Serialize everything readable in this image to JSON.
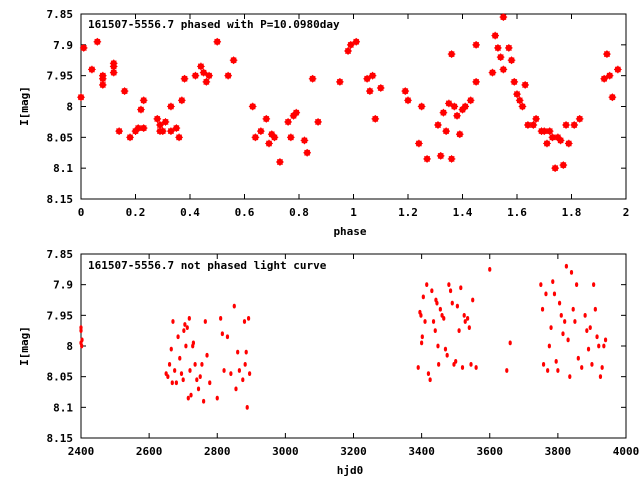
{
  "chart_data": [
    {
      "type": "scatter",
      "title": "161507-5556.7 phased with P=10.0980day",
      "xlabel": "phase",
      "ylabel": "I[mag]",
      "xlim": [
        0,
        2
      ],
      "ylim": [
        7.85,
        8.15
      ],
      "y_inverted": true,
      "grid": false,
      "marker_color": "#ff0000",
      "x_ticks": [
        0,
        0.2,
        0.4,
        0.6,
        0.8,
        1,
        1.2,
        1.4,
        1.6,
        1.8,
        2
      ],
      "x_tick_labels": [
        "0",
        "0.2",
        "0.4",
        "0.6",
        "0.8",
        "1",
        "1.2",
        "1.4",
        "1.6",
        "1.8",
        "2"
      ],
      "y_ticks": [
        7.85,
        7.9,
        7.95,
        8.0,
        8.05,
        8.1,
        8.15
      ],
      "y_tick_labels": [
        "7.85",
        "7.9",
        "7.95",
        "8",
        "8.05",
        "8.1",
        "8.15"
      ],
      "points": [
        [
          0.0,
          7.985
        ],
        [
          0.01,
          7.905
        ],
        [
          0.04,
          7.94
        ],
        [
          0.06,
          7.895
        ],
        [
          0.08,
          7.965
        ],
        [
          0.08,
          7.95
        ],
        [
          0.08,
          7.955
        ],
        [
          0.12,
          7.93
        ],
        [
          0.12,
          7.935
        ],
        [
          0.12,
          7.945
        ],
        [
          0.14,
          8.04
        ],
        [
          0.16,
          7.975
        ],
        [
          0.18,
          8.05
        ],
        [
          0.2,
          8.04
        ],
        [
          0.21,
          8.035
        ],
        [
          0.22,
          8.005
        ],
        [
          0.23,
          7.99
        ],
        [
          0.23,
          8.035
        ],
        [
          0.28,
          8.02
        ],
        [
          0.29,
          8.03
        ],
        [
          0.29,
          8.04
        ],
        [
          0.3,
          8.04
        ],
        [
          0.31,
          8.025
        ],
        [
          0.33,
          8.04
        ],
        [
          0.33,
          8.0
        ],
        [
          0.35,
          8.035
        ],
        [
          0.36,
          8.05
        ],
        [
          0.37,
          7.99
        ],
        [
          0.38,
          7.955
        ],
        [
          0.42,
          7.95
        ],
        [
          0.44,
          7.935
        ],
        [
          0.45,
          7.945
        ],
        [
          0.46,
          7.96
        ],
        [
          0.47,
          7.95
        ],
        [
          0.5,
          7.895
        ],
        [
          0.54,
          7.95
        ],
        [
          0.56,
          7.925
        ],
        [
          0.63,
          8.0
        ],
        [
          0.64,
          8.05
        ],
        [
          0.66,
          8.04
        ],
        [
          0.68,
          8.02
        ],
        [
          0.69,
          8.06
        ],
        [
          0.7,
          8.045
        ],
        [
          0.71,
          8.05
        ],
        [
          0.73,
          8.09
        ],
        [
          0.76,
          8.025
        ],
        [
          0.77,
          8.05
        ],
        [
          0.78,
          8.015
        ],
        [
          0.79,
          8.01
        ],
        [
          0.82,
          8.055
        ],
        [
          0.83,
          8.075
        ],
        [
          0.85,
          7.955
        ],
        [
          0.87,
          8.025
        ],
        [
          0.95,
          7.96
        ],
        [
          0.98,
          7.91
        ],
        [
          0.99,
          7.9
        ],
        [
          1.01,
          7.895
        ],
        [
          1.05,
          7.955
        ],
        [
          1.06,
          7.975
        ],
        [
          1.07,
          7.95
        ],
        [
          1.08,
          8.02
        ],
        [
          1.1,
          7.97
        ],
        [
          1.19,
          7.975
        ],
        [
          1.2,
          7.99
        ],
        [
          1.24,
          8.06
        ],
        [
          1.25,
          8.0
        ],
        [
          1.27,
          8.085
        ],
        [
          1.31,
          8.03
        ],
        [
          1.32,
          8.08
        ],
        [
          1.33,
          8.01
        ],
        [
          1.34,
          8.04
        ],
        [
          1.35,
          7.995
        ],
        [
          1.36,
          8.085
        ],
        [
          1.37,
          8.0
        ],
        [
          1.38,
          8.015
        ],
        [
          1.39,
          8.045
        ],
        [
          1.4,
          8.005
        ],
        [
          1.41,
          8.0
        ],
        [
          1.43,
          7.99
        ],
        [
          1.45,
          7.96
        ],
        [
          1.45,
          7.9
        ],
        [
          1.51,
          7.945
        ],
        [
          1.52,
          7.885
        ],
        [
          1.53,
          7.905
        ],
        [
          1.54,
          7.92
        ],
        [
          1.55,
          7.94
        ],
        [
          1.57,
          7.905
        ],
        [
          1.58,
          7.925
        ],
        [
          1.59,
          7.96
        ],
        [
          1.6,
          7.98
        ],
        [
          1.61,
          7.99
        ],
        [
          1.62,
          8.0
        ],
        [
          1.63,
          7.965
        ],
        [
          1.64,
          8.03
        ],
        [
          1.66,
          8.03
        ],
        [
          1.67,
          8.02
        ],
        [
          1.69,
          8.04
        ],
        [
          1.7,
          8.04
        ],
        [
          1.71,
          8.06
        ],
        [
          1.72,
          8.04
        ],
        [
          1.73,
          8.05
        ],
        [
          1.74,
          8.1
        ],
        [
          1.75,
          8.05
        ],
        [
          1.76,
          8.055
        ],
        [
          1.77,
          8.095
        ],
        [
          1.78,
          8.03
        ],
        [
          1.79,
          8.06
        ],
        [
          1.81,
          8.03
        ],
        [
          1.83,
          8.02
        ],
        [
          1.92,
          7.955
        ],
        [
          1.93,
          7.915
        ],
        [
          1.94,
          7.95
        ],
        [
          1.95,
          7.985
        ],
        [
          1.97,
          7.94
        ],
        [
          1.55,
          7.855
        ],
        [
          1.36,
          7.915
        ]
      ]
    },
    {
      "type": "scatter",
      "title": "161507-5556.7 not phased light curve",
      "xlabel": "hjd0",
      "ylabel": "I[mag]",
      "xlim": [
        2400,
        4000
      ],
      "ylim": [
        7.85,
        8.15
      ],
      "y_inverted": true,
      "grid": false,
      "marker_color": "#ff0000",
      "x_ticks": [
        2400,
        2600,
        2800,
        3000,
        3200,
        3400,
        3600,
        3800,
        4000
      ],
      "x_tick_labels": [
        "2400",
        "2600",
        "2800",
        "3000",
        "3200",
        "3400",
        "3600",
        "3800",
        "4000"
      ],
      "y_ticks": [
        7.85,
        7.9,
        7.95,
        8.0,
        8.05,
        8.1,
        8.15
      ],
      "y_tick_labels": [
        "7.85",
        "7.9",
        "7.95",
        "8",
        "8.05",
        "8.1",
        "8.15"
      ],
      "points": [
        [
          2400,
          7.97
        ],
        [
          2400,
          7.975
        ],
        [
          2400,
          7.995
        ],
        [
          2402,
          8.0
        ],
        [
          2403,
          7.99
        ],
        [
          2650,
          8.045
        ],
        [
          2655,
          8.05
        ],
        [
          2660,
          8.03
        ],
        [
          2665,
          8.005
        ],
        [
          2668,
          8.06
        ],
        [
          2670,
          7.96
        ],
        [
          2675,
          8.04
        ],
        [
          2680,
          8.06
        ],
        [
          2685,
          7.985
        ],
        [
          2690,
          8.02
        ],
        [
          2695,
          8.045
        ],
        [
          2700,
          8.055
        ],
        [
          2702,
          7.975
        ],
        [
          2705,
          7.965
        ],
        [
          2708,
          8.0
        ],
        [
          2712,
          7.97
        ],
        [
          2715,
          8.085
        ],
        [
          2718,
          7.955
        ],
        [
          2720,
          8.04
        ],
        [
          2723,
          8.08
        ],
        [
          2728,
          8.0
        ],
        [
          2730,
          7.995
        ],
        [
          2735,
          8.03
        ],
        [
          2740,
          8.055
        ],
        [
          2745,
          8.07
        ],
        [
          2750,
          8.05
        ],
        [
          2755,
          8.03
        ],
        [
          2760,
          8.09
        ],
        [
          2765,
          7.96
        ],
        [
          2770,
          8.015
        ],
        [
          2778,
          8.06
        ],
        [
          2800,
          8.085
        ],
        [
          2810,
          7.955
        ],
        [
          2815,
          7.98
        ],
        [
          2820,
          8.04
        ],
        [
          2830,
          7.985
        ],
        [
          2840,
          8.045
        ],
        [
          2850,
          7.935
        ],
        [
          2855,
          8.07
        ],
        [
          2860,
          8.01
        ],
        [
          2865,
          8.04
        ],
        [
          2875,
          8.055
        ],
        [
          2880,
          7.96
        ],
        [
          2882,
          8.03
        ],
        [
          2885,
          8.01
        ],
        [
          2888,
          8.1
        ],
        [
          2892,
          7.955
        ],
        [
          2895,
          8.045
        ],
        [
          3390,
          8.035
        ],
        [
          3395,
          7.945
        ],
        [
          3398,
          7.95
        ],
        [
          3400,
          7.995
        ],
        [
          3402,
          7.985
        ],
        [
          3405,
          7.92
        ],
        [
          3410,
          7.96
        ],
        [
          3415,
          7.9
        ],
        [
          3420,
          8.045
        ],
        [
          3425,
          8.055
        ],
        [
          3430,
          7.91
        ],
        [
          3435,
          7.96
        ],
        [
          3440,
          7.975
        ],
        [
          3442,
          7.925
        ],
        [
          3445,
          7.93
        ],
        [
          3448,
          8.0
        ],
        [
          3450,
          8.03
        ],
        [
          3455,
          7.94
        ],
        [
          3460,
          7.95
        ],
        [
          3465,
          7.955
        ],
        [
          3470,
          8.005
        ],
        [
          3475,
          8.015
        ],
        [
          3480,
          7.9
        ],
        [
          3485,
          7.91
        ],
        [
          3490,
          7.93
        ],
        [
          3495,
          8.03
        ],
        [
          3500,
          8.025
        ],
        [
          3505,
          7.935
        ],
        [
          3510,
          7.975
        ],
        [
          3515,
          7.905
        ],
        [
          3520,
          8.035
        ],
        [
          3525,
          7.95
        ],
        [
          3528,
          7.96
        ],
        [
          3535,
          7.955
        ],
        [
          3540,
          7.97
        ],
        [
          3545,
          8.03
        ],
        [
          3550,
          7.925
        ],
        [
          3560,
          8.035
        ],
        [
          3600,
          7.875
        ],
        [
          3650,
          8.04
        ],
        [
          3660,
          7.995
        ],
        [
          3750,
          7.9
        ],
        [
          3755,
          7.94
        ],
        [
          3758,
          8.03
        ],
        [
          3765,
          7.915
        ],
        [
          3770,
          8.04
        ],
        [
          3775,
          8.0
        ],
        [
          3780,
          7.97
        ],
        [
          3785,
          7.895
        ],
        [
          3790,
          7.915
        ],
        [
          3795,
          8.025
        ],
        [
          3800,
          8.04
        ],
        [
          3805,
          7.93
        ],
        [
          3810,
          7.95
        ],
        [
          3815,
          7.98
        ],
        [
          3820,
          7.96
        ],
        [
          3825,
          7.87
        ],
        [
          3830,
          7.99
        ],
        [
          3835,
          8.05
        ],
        [
          3840,
          7.88
        ],
        [
          3845,
          7.94
        ],
        [
          3850,
          7.96
        ],
        [
          3855,
          7.9
        ],
        [
          3860,
          8.02
        ],
        [
          3870,
          8.035
        ],
        [
          3880,
          7.95
        ],
        [
          3885,
          7.975
        ],
        [
          3890,
          8.005
        ],
        [
          3895,
          7.97
        ],
        [
          3900,
          8.03
        ],
        [
          3905,
          7.9
        ],
        [
          3910,
          7.94
        ],
        [
          3915,
          7.985
        ],
        [
          3920,
          8.0
        ],
        [
          3925,
          8.05
        ],
        [
          3928,
          7.84
        ],
        [
          3930,
          8.035
        ],
        [
          3935,
          8.0
        ],
        [
          3940,
          7.99
        ]
      ]
    }
  ]
}
